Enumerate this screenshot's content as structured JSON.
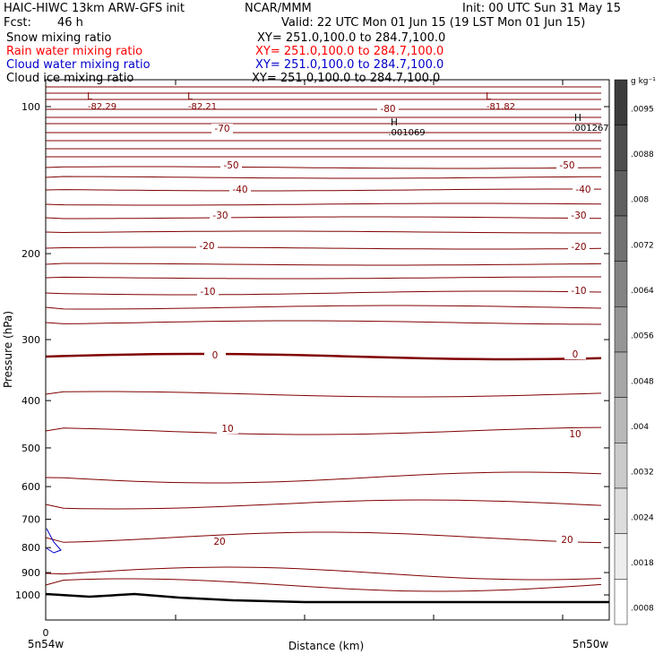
{
  "header": {
    "model": "HAIC-HIWC 13km ARW-GFS init",
    "center": "NCAR/MMM",
    "init": "Init: 00 UTC Sun 31 May 15",
    "fcst_label": "Fcst:",
    "fcst_value": "46 h",
    "valid": "Valid: 22 UTC Mon 01 Jun 15 (19 LST Mon 01 Jun 15)"
  },
  "fields": [
    {
      "name": "Snow mixing ratio",
      "xy": "XY= 251.0,100.0 to 284.7,100.0",
      "color": "#000000"
    },
    {
      "name": "Rain water mixing ratio",
      "xy": "XY= 251.0,100.0 to 284.7,100.0",
      "color": "#ff0000"
    },
    {
      "name": "Cloud water mixing ratio",
      "xy": "XY= 251.0,100.0 to 284.7,100.0",
      "color": "#0000cc"
    },
    {
      "name": "Cloud ice mixing ratio",
      "xy": "XY= 251.0,100.0 to 284.7,100.0",
      "color": "#000000"
    }
  ],
  "chart_data": {
    "type": "cross-section",
    "xlabel": "Distance (km)",
    "ylabel": "Pressure (hPa)",
    "y_scale": "log-pressure",
    "ylim": [
      1050,
      70
    ],
    "yticks": [
      100,
      200,
      300,
      400,
      500,
      600,
      700,
      800,
      900,
      1000
    ],
    "x_tick_zero": "0",
    "x_left_label": "5n54w",
    "x_right_label": "5n50w",
    "temperature_contours": {
      "levels_labeled": [
        -80,
        -70,
        -50,
        -40,
        -30,
        -20,
        -10,
        0,
        10,
        20
      ],
      "color": "#800000",
      "zero_line_bold": true
    },
    "annotations": [
      {
        "text": "L",
        "value": "-82.29"
      },
      {
        "text": "L",
        "value": "-82.21"
      },
      {
        "text": "L",
        "value": "-81.82"
      },
      {
        "text": "H",
        "value": ".001069"
      },
      {
        "text": "H",
        "value": ".001267"
      }
    ],
    "colorbar": {
      "unit": "g kg⁻¹",
      "ticks": [
        ".0095",
        ".0088",
        ".008",
        ".0072",
        ".0064",
        ".0056",
        ".0048",
        ".004",
        ".0032",
        ".0024",
        ".0018",
        ".0008"
      ]
    }
  }
}
